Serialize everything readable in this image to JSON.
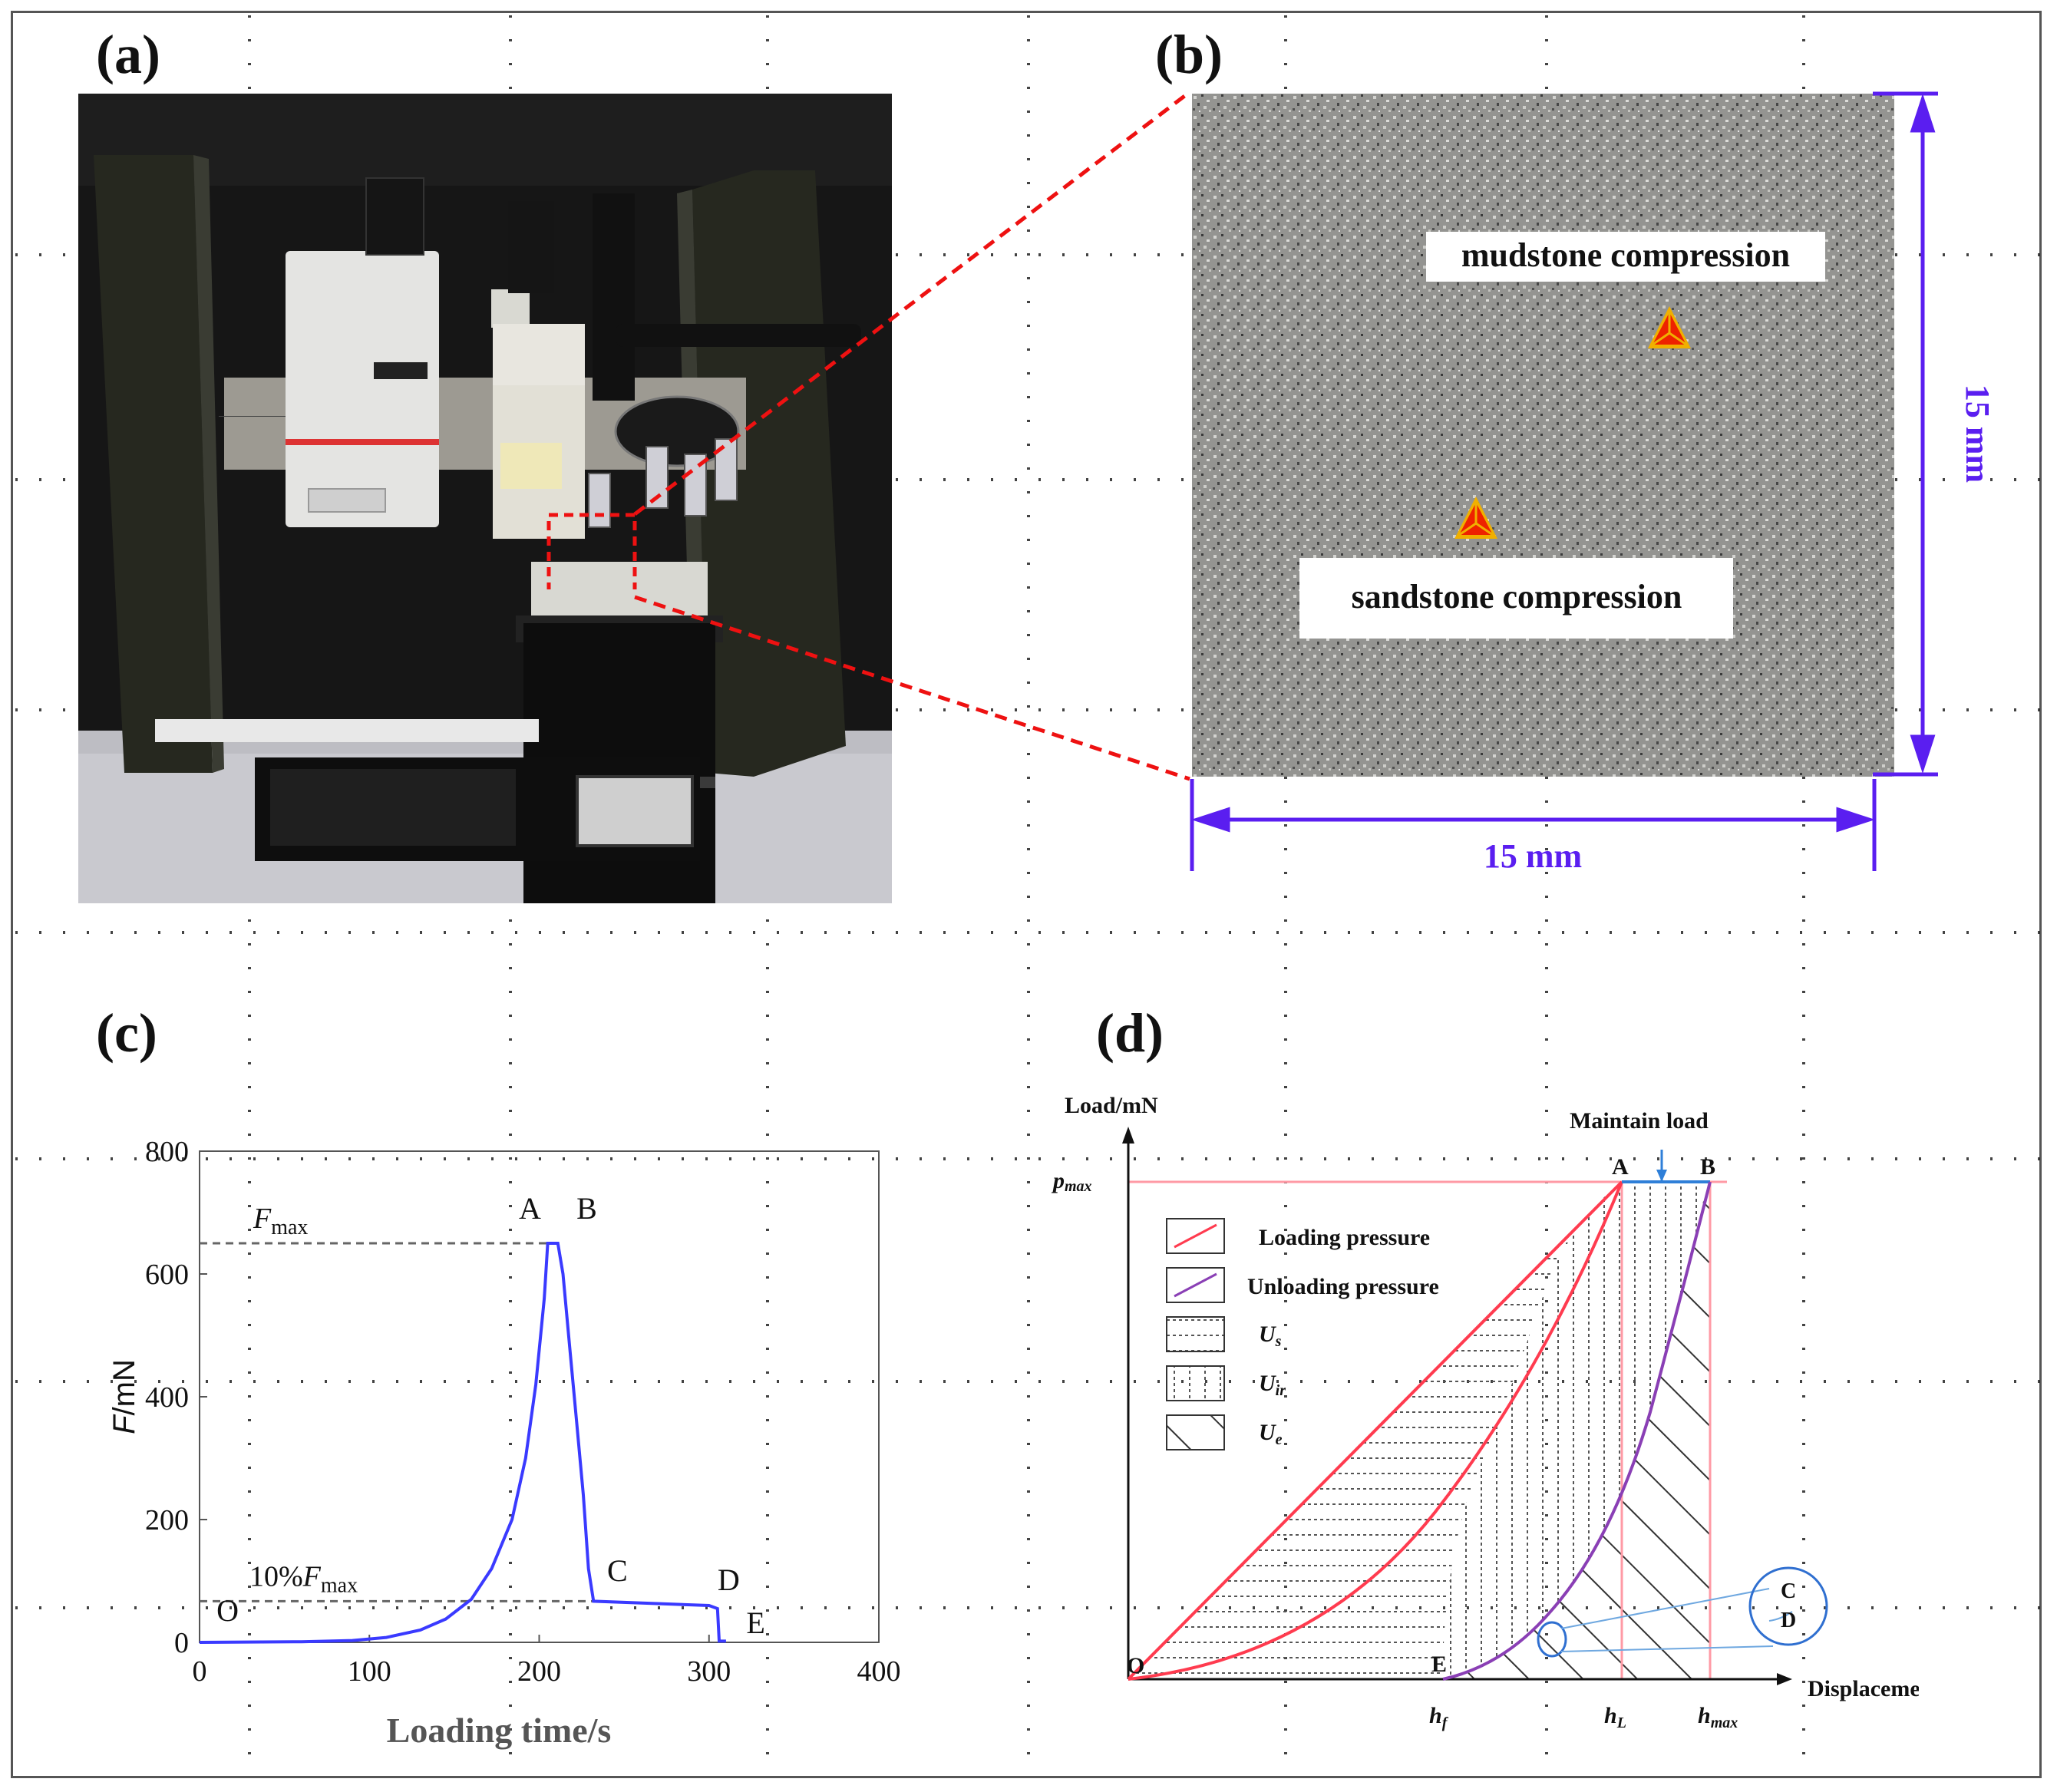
{
  "panels": {
    "a": {
      "label": "(a)"
    },
    "b": {
      "label": "(b)",
      "mudstone_label": "mudstone compression",
      "sandstone_label": "sandstone compression",
      "width_label": "15 mm",
      "height_label": "15 mm"
    },
    "c": {
      "label": "(c)"
    },
    "d": {
      "label": "(d)"
    }
  },
  "chart_data": [
    {
      "id": "c",
      "type": "line",
      "xlabel": "Loading time/s",
      "ylabel_italic": "F",
      "ylabel_rest": "/mN",
      "xlim": [
        0,
        400
      ],
      "ylim": [
        0,
        800
      ],
      "xticks": [
        0,
        100,
        200,
        300,
        400
      ],
      "yticks": [
        0,
        200,
        400,
        600,
        800
      ],
      "series": [
        {
          "name": "F",
          "color": "#3a3aff",
          "x": [
            0,
            60,
            90,
            110,
            130,
            145,
            160,
            172,
            184,
            192,
            198,
            203,
            205,
            211,
            214,
            218,
            222,
            226,
            229,
            232,
            300,
            305,
            306,
            310
          ],
          "y": [
            0,
            1,
            3,
            8,
            20,
            38,
            70,
            120,
            200,
            300,
            420,
            560,
            650,
            650,
            600,
            480,
            360,
            240,
            120,
            67,
            60,
            55,
            2,
            2
          ]
        }
      ],
      "reference_lines": [
        {
          "label_italic": "F",
          "label_sub": "max",
          "prefix": "",
          "value": 650
        },
        {
          "label_italic": "F",
          "label_sub": "max",
          "prefix": "10%",
          "value": 67
        }
      ],
      "point_labels": [
        {
          "label": "O",
          "x": 10,
          "y": 35
        },
        {
          "label": "A",
          "x": 188,
          "y": 690
        },
        {
          "label": "B",
          "x": 222,
          "y": 690
        },
        {
          "label": "C",
          "x": 240,
          "y": 100
        },
        {
          "label": "D",
          "x": 305,
          "y": 85
        },
        {
          "label": "E",
          "x": 322,
          "y": 15
        }
      ]
    },
    {
      "id": "d",
      "type": "line",
      "y_axis_label": "Load/mN",
      "x_axis_label": "Displacement/nm",
      "pmax_label": "p",
      "pmax_sub": "max",
      "maintain_label": "Maintain load",
      "point_labels": [
        "O",
        "A",
        "B",
        "C",
        "D",
        "E"
      ],
      "x_markers": [
        {
          "label": "h",
          "sub": "f"
        },
        {
          "label": "h",
          "sub": "L"
        },
        {
          "label": "h",
          "sub": "max"
        }
      ],
      "legend": [
        {
          "label": "Loading pressure",
          "style": "line",
          "color": "#ff3b4f"
        },
        {
          "label": "Unloading pressure",
          "style": "line",
          "color": "#8a3fb5"
        },
        {
          "label": "U",
          "sub": "s",
          "style": "hatch-horizontal"
        },
        {
          "label": "U",
          "sub": "ir",
          "style": "hatch-vertical"
        },
        {
          "label": "U",
          "sub": "e",
          "style": "hatch-diagonal"
        }
      ],
      "colors": {
        "loading": "#ff3b4f",
        "unloading": "#8a3fb5",
        "maintain_arrow": "#2f7fd8"
      }
    }
  ]
}
